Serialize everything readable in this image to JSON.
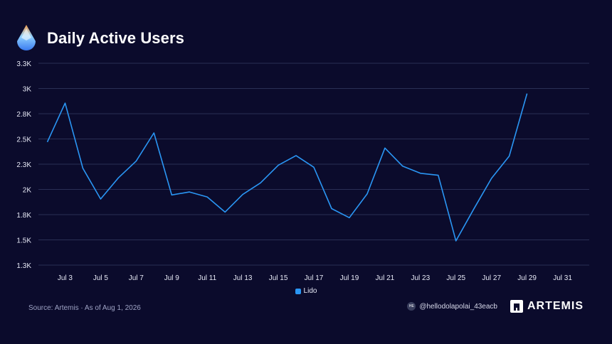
{
  "header": {
    "title": "Daily Active Users"
  },
  "legend": {
    "label": "Lido"
  },
  "footer": {
    "source": "Source: Artemis · As of Aug 1, 2026",
    "handle": "@hellodolapolai_43eacb",
    "brand": "ARTEMIS"
  },
  "colors": {
    "background": "#0b0b2c",
    "series": "#2a96f4",
    "grid": "#2a2f55",
    "text": "#e6e8f5"
  },
  "chart_data": {
    "type": "line",
    "title": "Daily Active Users",
    "x": [
      "Jul 2",
      "Jul 3",
      "Jul 4",
      "Jul 5",
      "Jul 6",
      "Jul 7",
      "Jul 8",
      "Jul 9",
      "Jul 10",
      "Jul 11",
      "Jul 12",
      "Jul 13",
      "Jul 14",
      "Jul 15",
      "Jul 16",
      "Jul 17",
      "Jul 18",
      "Jul 19",
      "Jul 20",
      "Jul 21",
      "Jul 22",
      "Jul 23",
      "Jul 24",
      "Jul 25",
      "Jul 26",
      "Jul 27",
      "Jul 28",
      "Jul 29"
    ],
    "x_tick_labels": [
      "Jul 3",
      "Jul 5",
      "Jul 7",
      "Jul 9",
      "Jul 11",
      "Jul 13",
      "Jul 15",
      "Jul 17",
      "Jul 19",
      "Jul 21",
      "Jul 23",
      "Jul 25",
      "Jul 27",
      "Jul 29",
      "Jul 31"
    ],
    "x_tick_days": [
      3,
      5,
      7,
      9,
      11,
      13,
      15,
      17,
      19,
      21,
      23,
      25,
      27,
      29,
      31
    ],
    "x_days": [
      2,
      3,
      4,
      5,
      6,
      7,
      8,
      9,
      10,
      11,
      12,
      13,
      14,
      15,
      16,
      17,
      18,
      19,
      20,
      21,
      22,
      23,
      24,
      25,
      26,
      27,
      28,
      29
    ],
    "x_range": [
      1.5,
      32.5
    ],
    "y_ticks": [
      1250,
      1500,
      1750,
      2000,
      2250,
      2500,
      2750,
      3000,
      3250
    ],
    "y_tick_labels": [
      "1.3K",
      "1.5K",
      "1.8K",
      "2K",
      "2.3K",
      "2.5K",
      "2.8K",
      "3K",
      "3.3K"
    ],
    "ylim": [
      1250,
      3250
    ],
    "series": [
      {
        "name": "Lido",
        "values": [
          2470,
          2855,
          2210,
          1905,
          2115,
          2280,
          2560,
          1945,
          1975,
          1925,
          1775,
          1950,
          2065,
          2240,
          2335,
          2220,
          1810,
          1720,
          1955,
          2410,
          2230,
          2160,
          2140,
          1490,
          1805,
          2110,
          2330,
          2950
        ]
      }
    ],
    "xlabel": "",
    "ylabel": "",
    "grid": true,
    "legend_position": "bottom-center"
  }
}
